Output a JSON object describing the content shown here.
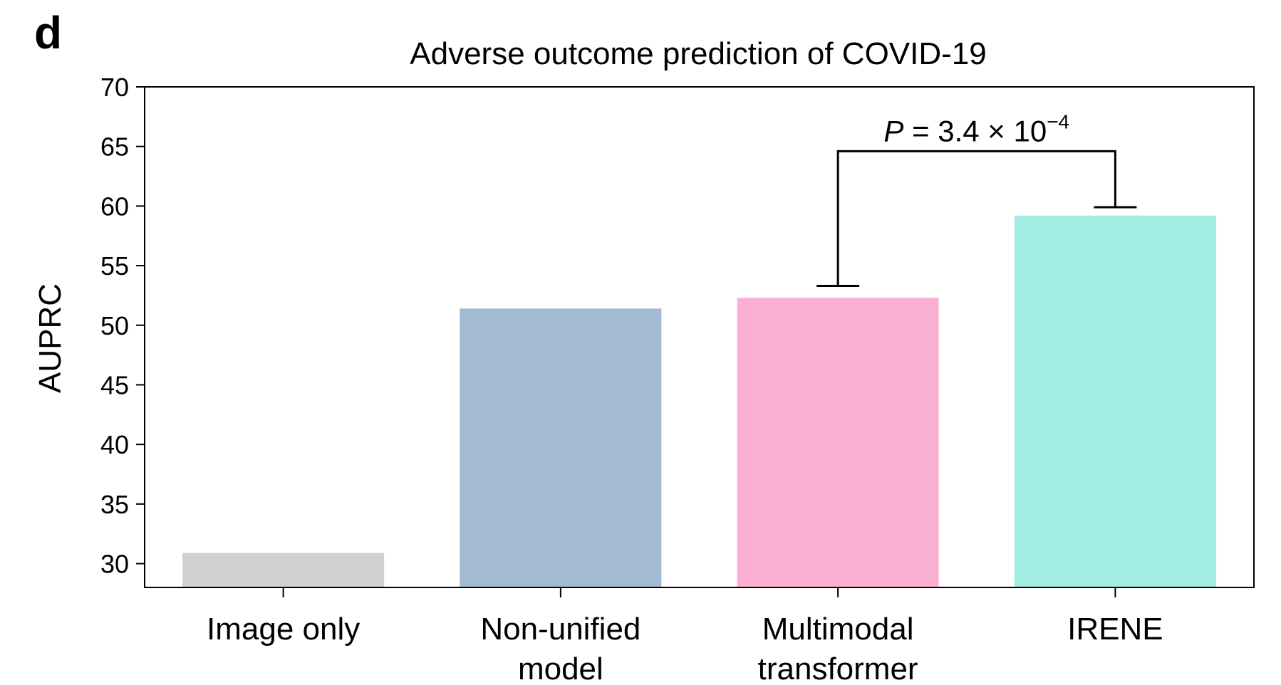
{
  "chart_data": {
    "type": "bar",
    "panel_label": "d",
    "title": "Adverse outcome prediction of COVID-19",
    "xlabel": "",
    "ylabel": "AUPRC",
    "ylim": [
      28,
      70
    ],
    "yticks": [
      30,
      35,
      40,
      45,
      50,
      55,
      60,
      65,
      70
    ],
    "categories": [
      [
        "Image only"
      ],
      [
        "Non-unified",
        "model"
      ],
      [
        "Multimodal",
        "transformer"
      ],
      [
        "IRENE"
      ]
    ],
    "values": [
      30.9,
      51.4,
      52.3,
      59.2
    ],
    "colors": [
      "#d0d0d0",
      "#a2bbd3",
      "#fbb0d3",
      "#a3ece1"
    ],
    "grid": false,
    "annotation": {
      "label_italic": "P",
      "label_text": " = 3.4 × 10",
      "label_exponent": "−4",
      "from_category": 2,
      "to_category": 3
    }
  }
}
